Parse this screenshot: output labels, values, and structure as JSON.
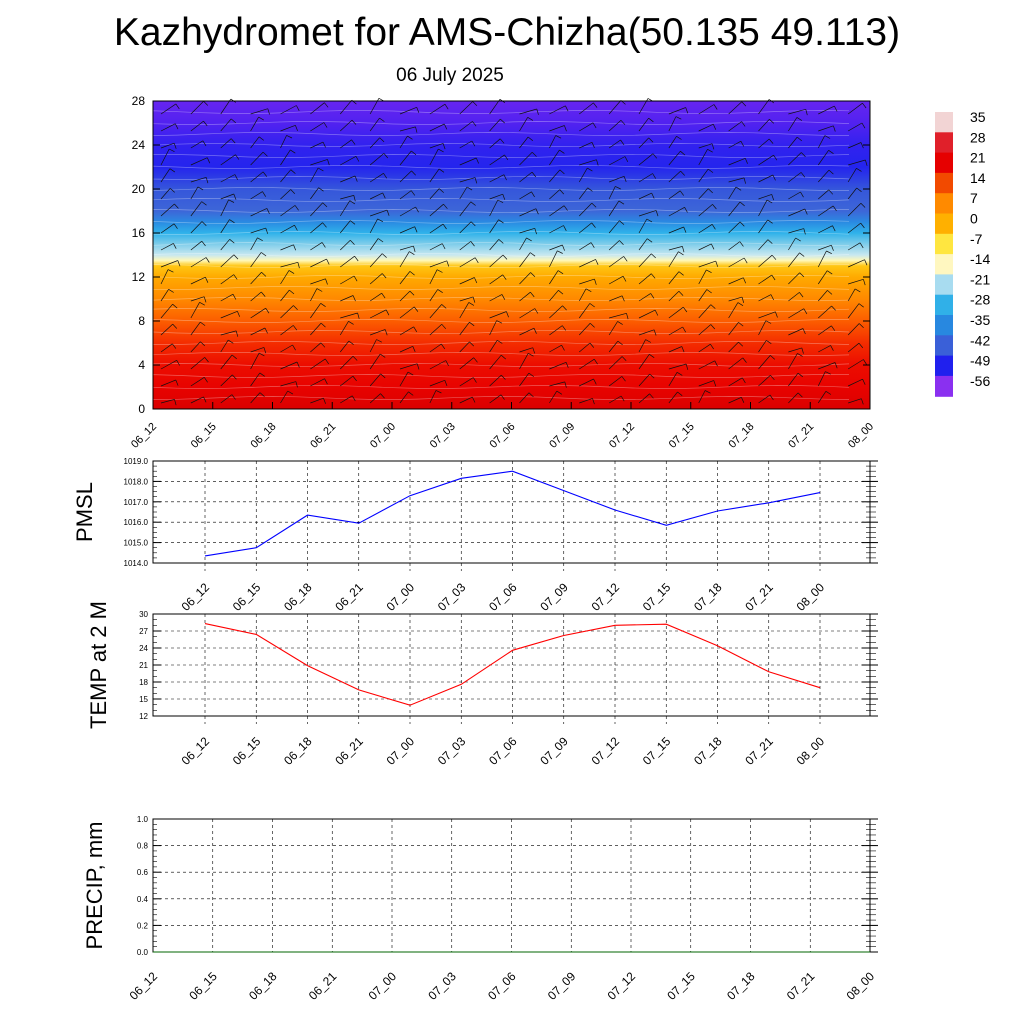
{
  "title": "Kazhydromet for AMS-Chizha(50.135 49.113)",
  "subtitle": "06 July 2025",
  "time_labels": [
    "06_12",
    "06_15",
    "06_18",
    "06_21",
    "07_00",
    "07_03",
    "07_06",
    "07_09",
    "07_12",
    "07_15",
    "07_18",
    "07_21",
    "08_00"
  ],
  "chart_data": [
    {
      "type": "heatmap",
      "name": "temperature-cross-section",
      "x": [
        "06_12",
        "06_15",
        "06_18",
        "06_21",
        "07_00",
        "07_03",
        "07_06",
        "07_09",
        "07_12",
        "07_15",
        "07_18",
        "07_21",
        "08_00"
      ],
      "y_ticks": [
        0,
        4,
        8,
        12,
        16,
        20,
        24,
        28
      ],
      "ylim": [
        0,
        28
      ],
      "colorbar": {
        "labels": [
          "35",
          "28",
          "21",
          "14",
          "7",
          "0",
          "-7",
          "-14",
          "-21",
          "-28",
          "-35",
          "-42",
          "-49",
          "-56"
        ],
        "colors": [
          "#f2d4d4",
          "#e0202a",
          "#e60000",
          "#f24a00",
          "#ff8a00",
          "#ffb000",
          "#ffe640",
          "#fff7c0",
          "#a8dcf0",
          "#30b0e8",
          "#2888e0",
          "#3a60d8",
          "#2020ee",
          "#8a30f0"
        ]
      },
      "level_profile": [
        {
          "h": 0,
          "v": 28
        },
        {
          "h": 2,
          "v": 24
        },
        {
          "h": 4,
          "v": 21
        },
        {
          "h": 6,
          "v": 17
        },
        {
          "h": 8,
          "v": 12
        },
        {
          "h": 10,
          "v": 7
        },
        {
          "h": 12,
          "v": 2
        },
        {
          "h": 13,
          "v": -2
        },
        {
          "h": 13.5,
          "v": -12
        },
        {
          "h": 14,
          "v": -16
        },
        {
          "h": 15,
          "v": -22
        },
        {
          "h": 16,
          "v": -28
        },
        {
          "h": 17,
          "v": -34
        },
        {
          "h": 18,
          "v": -40
        },
        {
          "h": 20,
          "v": -44
        },
        {
          "h": 22,
          "v": -50
        },
        {
          "h": 24,
          "v": -52
        },
        {
          "h": 26,
          "v": -56
        },
        {
          "h": 28,
          "v": -58
        }
      ],
      "grid": false,
      "wind_barbs": true
    },
    {
      "type": "line",
      "name": "pmsl",
      "ylabel": "PMSL",
      "categories": [
        "06_12",
        "06_15",
        "06_18",
        "06_21",
        "07_00",
        "07_03",
        "07_06",
        "07_09",
        "07_12",
        "07_15",
        "07_18",
        "07_21",
        "08_00"
      ],
      "values": [
        1014.35,
        1014.75,
        1016.35,
        1015.95,
        1017.3,
        1018.15,
        1018.5,
        1017.55,
        1016.6,
        1015.85,
        1016.55,
        1016.95,
        1017.45
      ],
      "ylim": [
        1014,
        1019
      ],
      "yticks": [
        "1014.0",
        "1015.0",
        "1016.0",
        "1017.0",
        "1018.0",
        "1019.0"
      ],
      "color": "#0000ff",
      "grid": true
    },
    {
      "type": "line",
      "name": "temp-2m",
      "ylabel": "TEMP at 2 M",
      "categories": [
        "06_12",
        "06_15",
        "06_18",
        "06_21",
        "07_00",
        "07_03",
        "07_06",
        "07_09",
        "07_12",
        "07_15",
        "07_18",
        "07_21",
        "08_00"
      ],
      "values": [
        28.3,
        26.4,
        20.9,
        16.6,
        13.9,
        17.6,
        23.6,
        26.2,
        28.0,
        28.2,
        24.4,
        19.8,
        17.0
      ],
      "ylim": [
        12,
        30
      ],
      "yticks": [
        "12",
        "15",
        "18",
        "21",
        "24",
        "27",
        "30"
      ],
      "color": "#ff0000",
      "grid": true
    },
    {
      "type": "line",
      "name": "precip",
      "ylabel": "PRECIP, mm",
      "categories": [
        "06_12",
        "06_15",
        "06_18",
        "06_21",
        "07_00",
        "07_03",
        "07_06",
        "07_09",
        "07_12",
        "07_15",
        "07_18",
        "07_21",
        "08_00"
      ],
      "values": [
        0,
        0,
        0,
        0,
        0,
        0,
        0,
        0,
        0,
        0,
        0,
        0,
        0
      ],
      "ylim": [
        0,
        1
      ],
      "yticks": [
        "0.0",
        "0.2",
        "0.4",
        "0.6",
        "0.8",
        "1.0"
      ],
      "color": "#006400",
      "grid": true
    }
  ]
}
